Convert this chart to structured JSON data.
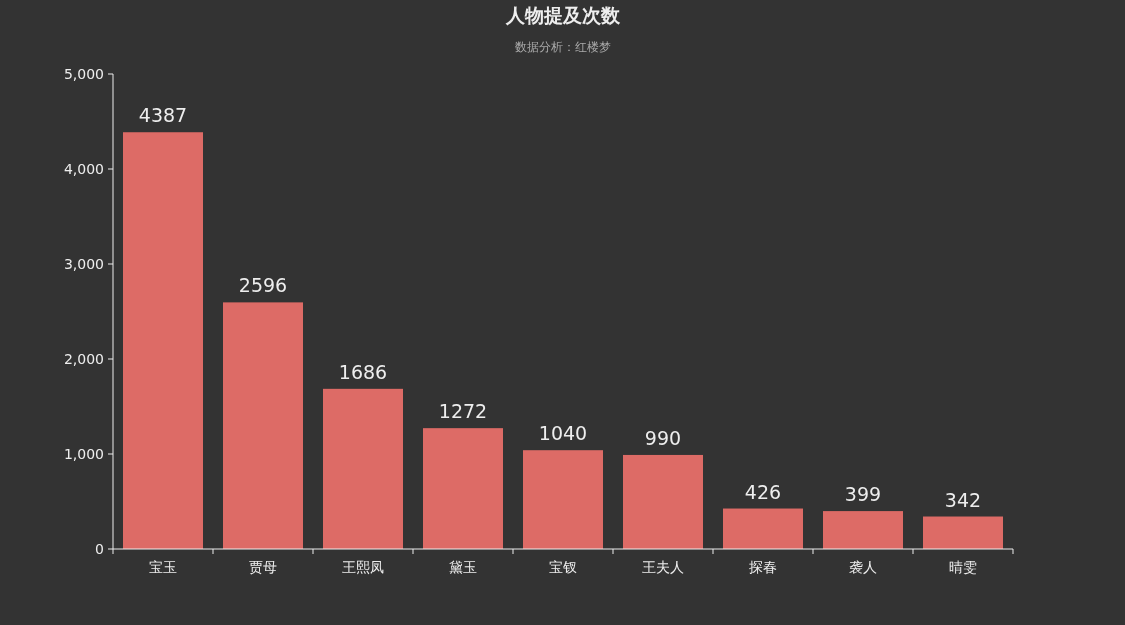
{
  "chart_data": {
    "type": "bar",
    "title": "人物提及次数",
    "subtitle": "数据分析：红楼梦",
    "categories": [
      "宝玉",
      "贾母",
      "王熙凤",
      "黛玉",
      "宝钗",
      "王夫人",
      "探春",
      "袭人",
      "晴雯"
    ],
    "values": [
      4387,
      2596,
      1686,
      1272,
      1040,
      990,
      426,
      399,
      342
    ],
    "color": "#dd6b66",
    "ylim": [
      0,
      5000
    ],
    "yticks": [
      0,
      {
        "value": 1000,
        "label": "1,000"
      },
      {
        "value": 2000,
        "label": "2,000"
      },
      {
        "value": 3000,
        "label": "3,000"
      },
      {
        "value": 4000,
        "label": "4,000"
      },
      {
        "value": 5000,
        "label": "5,000"
      }
    ],
    "data_labels": true
  }
}
